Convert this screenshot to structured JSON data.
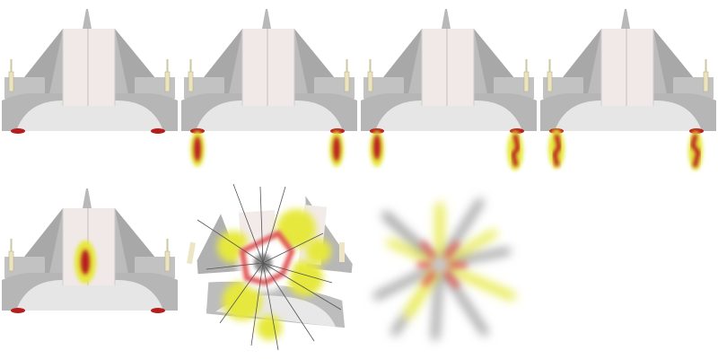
{
  "sprite_sheet": {
    "frame_count": 7,
    "frames": [
      {
        "name": "frame-idle",
        "ship": "intact",
        "thrust": 0,
        "hit": false,
        "explosion": null
      },
      {
        "name": "frame-thrust-1",
        "ship": "intact",
        "thrust": 1,
        "hit": false,
        "explosion": null
      },
      {
        "name": "frame-thrust-2",
        "ship": "intact",
        "thrust": 2,
        "hit": false,
        "explosion": null
      },
      {
        "name": "frame-thrust-3",
        "ship": "intact",
        "thrust": 3,
        "hit": false,
        "explosion": null
      },
      {
        "name": "frame-hit",
        "ship": "damaged",
        "thrust": 0,
        "hit": true,
        "explosion": null
      },
      {
        "name": "frame-explode",
        "ship": "breaking",
        "thrust": 0,
        "hit": false,
        "explosion": "burst"
      },
      {
        "name": "frame-debris",
        "ship": "none",
        "thrust": 0,
        "hit": false,
        "explosion": "fade"
      }
    ]
  },
  "colors": {
    "hull_light": "#f1e9e7",
    "hull_mid": "#c4c4c4",
    "hull_dark": "#a8a8a8",
    "hull_base": "#e6e6e6",
    "cannon": "#ece4c0",
    "thruster_red": "#b71c1c",
    "fire_yellow": "#e6e83c",
    "smoke_gray": "#9a9a9a"
  }
}
